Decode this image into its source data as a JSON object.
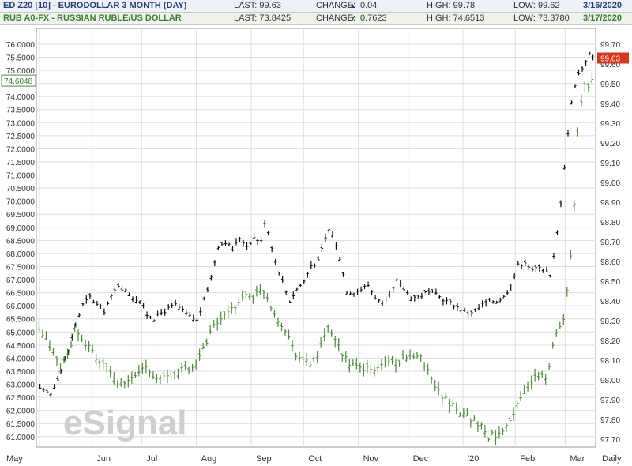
{
  "header": {
    "line1": {
      "symbol": "ED Z20 [10] - EURODOLLAR 3 MONTH (DAY)",
      "last": "LAST: 99.63",
      "change_label": "CHANGE:",
      "change_value": "0.04",
      "change_direction": "up",
      "high": "HIGH: 99.78",
      "low": "LOW: 99.62",
      "date": "3/16/2020"
    },
    "line2": {
      "symbol": "RUB A0-FX - RUSSIAN RUBLE/US DOLLAR",
      "last": "LAST: 73.8425",
      "change_label": "CHANGE:",
      "change_value": "0.7623",
      "change_direction": "down",
      "high": "HIGH: 74.6513",
      "low": "LOW: 73.3780",
      "date": "3/17/2020"
    }
  },
  "watermark": "eSignal",
  "period_label": "Daily",
  "chart_data": {
    "type": "line",
    "x_labels": [
      "May",
      "Jun",
      "Jul",
      "Aug",
      "Sep",
      "Oct",
      "Nov",
      "Dec",
      "'20",
      "Feb",
      "Mar"
    ],
    "left_axis": {
      "ylim": [
        60.6,
        76.6
      ],
      "ticks": [
        "76.0000",
        "75.5000",
        "75.0000",
        "74.5000",
        "74.0000",
        "73.5000",
        "73.0000",
        "72.5000",
        "72.0000",
        "71.5000",
        "71.0000",
        "70.5000",
        "70.0000",
        "69.5000",
        "69.0000",
        "68.5000",
        "68.0000",
        "67.5000",
        "67.0000",
        "66.5000",
        "66.0000",
        "65.5000",
        "65.0000",
        "64.5000",
        "64.0000",
        "63.5000",
        "63.0000",
        "62.5000",
        "62.0000",
        "61.5000",
        "61.0000"
      ],
      "last_marker": "74.6048"
    },
    "right_axis": {
      "ylim": [
        97.66,
        99.78
      ],
      "ticks": [
        "99.70",
        "99.60",
        "99.50",
        "99.40",
        "99.30",
        "99.20",
        "99.10",
        "99.00",
        "98.90",
        "98.80",
        "98.70",
        "98.60",
        "98.50",
        "98.40",
        "98.30",
        "98.20",
        "98.10",
        "98.00",
        "97.90",
        "97.80",
        "97.70"
      ],
      "last_marker": "99.63"
    },
    "series": [
      {
        "name": "ED Z20 [10] - EURODOLLAR 3 MONTH (DAY)",
        "axis": "right",
        "color": "#111111",
        "points": [
          [
            0,
            97.95
          ],
          [
            3,
            97.93
          ],
          [
            6,
            98.05
          ],
          [
            8,
            98.15
          ],
          [
            10,
            98.28
          ],
          [
            12,
            98.38
          ],
          [
            14,
            98.42
          ],
          [
            16,
            98.38
          ],
          [
            18,
            98.35
          ],
          [
            20,
            98.42
          ],
          [
            22,
            98.48
          ],
          [
            24,
            98.45
          ],
          [
            26,
            98.42
          ],
          [
            28,
            98.4
          ],
          [
            30,
            98.33
          ],
          [
            32,
            98.31
          ],
          [
            34,
            98.34
          ],
          [
            36,
            98.36
          ],
          [
            38,
            98.38
          ],
          [
            40,
            98.35
          ],
          [
            42,
            98.32
          ],
          [
            44,
            98.3
          ],
          [
            46,
            98.4
          ],
          [
            48,
            98.52
          ],
          [
            50,
            98.68
          ],
          [
            52,
            98.7
          ],
          [
            54,
            98.66
          ],
          [
            56,
            98.72
          ],
          [
            58,
            98.68
          ],
          [
            60,
            98.72
          ],
          [
            62,
            98.7
          ],
          [
            63,
            98.8
          ],
          [
            64,
            98.75
          ],
          [
            66,
            98.6
          ],
          [
            68,
            98.5
          ],
          [
            70,
            98.4
          ],
          [
            72,
            98.46
          ],
          [
            74,
            98.5
          ],
          [
            76,
            98.58
          ],
          [
            78,
            98.6
          ],
          [
            80,
            98.72
          ],
          [
            81,
            98.76
          ],
          [
            82,
            98.74
          ],
          [
            84,
            98.62
          ],
          [
            86,
            98.45
          ],
          [
            88,
            98.44
          ],
          [
            90,
            98.46
          ],
          [
            92,
            98.48
          ],
          [
            94,
            98.42
          ],
          [
            96,
            98.38
          ],
          [
            98,
            98.42
          ],
          [
            100,
            98.5
          ],
          [
            102,
            98.46
          ],
          [
            104,
            98.42
          ],
          [
            106,
            98.42
          ],
          [
            108,
            98.44
          ],
          [
            110,
            98.44
          ],
          [
            112,
            98.42
          ],
          [
            114,
            98.4
          ],
          [
            116,
            98.38
          ],
          [
            118,
            98.36
          ],
          [
            120,
            98.34
          ],
          [
            122,
            98.35
          ],
          [
            124,
            98.38
          ],
          [
            126,
            98.4
          ],
          [
            128,
            98.4
          ],
          [
            130,
            98.42
          ],
          [
            132,
            98.48
          ],
          [
            134,
            98.58
          ],
          [
            136,
            98.6
          ],
          [
            138,
            98.55
          ],
          [
            140,
            98.58
          ],
          [
            142,
            98.55
          ],
          [
            143,
            98.52
          ],
          [
            144,
            98.62
          ],
          [
            145,
            98.75
          ],
          [
            146,
            98.9
          ],
          [
            147,
            99.08
          ],
          [
            148,
            99.25
          ],
          [
            149,
            99.4
          ],
          [
            150,
            99.5
          ],
          [
            151,
            99.55
          ],
          [
            152,
            99.58
          ],
          [
            153,
            99.62
          ],
          [
            154,
            99.65
          ],
          [
            155,
            99.63
          ]
        ]
      },
      {
        "name": "RUB A0-FX - RUSSIAN RUBLE/US DOLLAR",
        "axis": "left",
        "color": "#4d8a3b",
        "points": [
          [
            0,
            65.0
          ],
          [
            3,
            64.5
          ],
          [
            6,
            63.6
          ],
          [
            8,
            64.1
          ],
          [
            10,
            65.1
          ],
          [
            12,
            64.6
          ],
          [
            14,
            64.5
          ],
          [
            16,
            64.0
          ],
          [
            18,
            63.7
          ],
          [
            20,
            63.5
          ],
          [
            22,
            63.0
          ],
          [
            24,
            63.0
          ],
          [
            26,
            63.2
          ],
          [
            28,
            63.5
          ],
          [
            30,
            63.7
          ],
          [
            32,
            63.4
          ],
          [
            34,
            63.2
          ],
          [
            36,
            63.3
          ],
          [
            38,
            63.4
          ],
          [
            40,
            63.6
          ],
          [
            42,
            63.5
          ],
          [
            44,
            63.8
          ],
          [
            46,
            64.4
          ],
          [
            48,
            65.0
          ],
          [
            50,
            65.4
          ],
          [
            52,
            65.6
          ],
          [
            54,
            65.8
          ],
          [
            56,
            66.2
          ],
          [
            58,
            66.4
          ],
          [
            60,
            66.4
          ],
          [
            62,
            66.5
          ],
          [
            63,
            66.6
          ],
          [
            64,
            66.3
          ],
          [
            66,
            65.7
          ],
          [
            68,
            65.3
          ],
          [
            70,
            64.8
          ],
          [
            72,
            64.2
          ],
          [
            74,
            63.9
          ],
          [
            76,
            63.8
          ],
          [
            78,
            64.1
          ],
          [
            80,
            64.8
          ],
          [
            81,
            65.2
          ],
          [
            82,
            64.8
          ],
          [
            84,
            64.4
          ],
          [
            86,
            64.0
          ],
          [
            88,
            63.7
          ],
          [
            90,
            63.6
          ],
          [
            92,
            63.6
          ],
          [
            94,
            63.5
          ],
          [
            96,
            63.8
          ],
          [
            98,
            63.9
          ],
          [
            100,
            63.8
          ],
          [
            102,
            63.9
          ],
          [
            104,
            64.0
          ],
          [
            106,
            64.2
          ],
          [
            108,
            63.8
          ],
          [
            110,
            63.2
          ],
          [
            112,
            62.8
          ],
          [
            114,
            62.4
          ],
          [
            116,
            62.2
          ],
          [
            118,
            62.0
          ],
          [
            120,
            61.8
          ],
          [
            122,
            61.6
          ],
          [
            124,
            61.4
          ],
          [
            126,
            61.0
          ],
          [
            128,
            61.1
          ],
          [
            130,
            61.3
          ],
          [
            132,
            61.7
          ],
          [
            134,
            62.2
          ],
          [
            136,
            62.7
          ],
          [
            138,
            63.1
          ],
          [
            140,
            63.3
          ],
          [
            142,
            63.3
          ],
          [
            143,
            63.6
          ],
          [
            144,
            64.4
          ],
          [
            145,
            64.9
          ],
          [
            146,
            65.3
          ],
          [
            147,
            65.6
          ],
          [
            148,
            66.6
          ],
          [
            149,
            68.0
          ],
          [
            150,
            70.0
          ],
          [
            151,
            72.5
          ],
          [
            152,
            73.8
          ],
          [
            153,
            74.4
          ],
          [
            154,
            74.3
          ],
          [
            155,
            74.6
          ]
        ]
      }
    ],
    "grid": true
  }
}
